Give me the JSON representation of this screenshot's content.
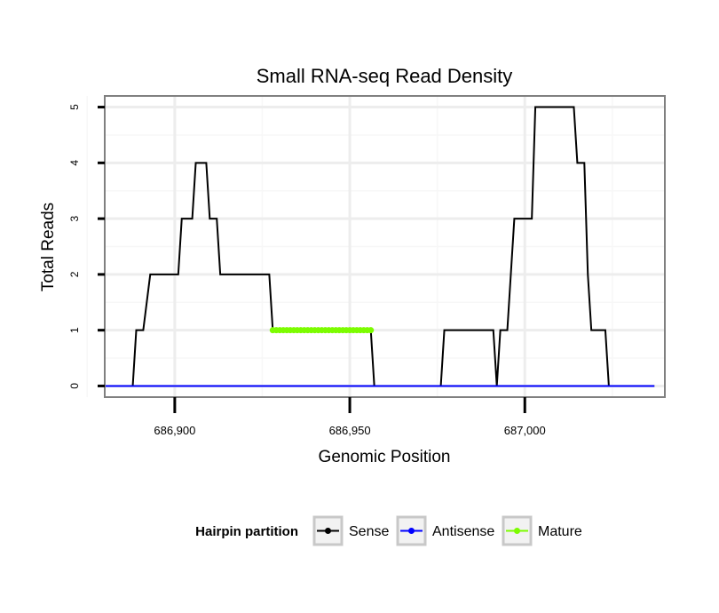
{
  "chart_data": {
    "type": "line",
    "title": "Small RNA-seq Read Density",
    "xlabel": "Genomic Position",
    "ylabel": "Total Reads",
    "xlim": [
      686880,
      687040
    ],
    "ylim": [
      -0.2,
      5.2
    ],
    "x_ticks": [
      686900,
      686950,
      687000
    ],
    "x_tick_labels": [
      "686,900",
      "686,950",
      "687,000"
    ],
    "y_ticks": [
      0,
      1,
      2,
      3,
      4,
      5
    ],
    "y_tick_labels": [
      "0",
      "1",
      "2",
      "3",
      "4",
      "5"
    ],
    "grid": true,
    "legend": {
      "title": "Hairpin partition",
      "position": "bottom",
      "entries": [
        "Sense",
        "Antisense",
        "Mature"
      ]
    },
    "series": [
      {
        "name": "Sense",
        "color": "#000000",
        "points": [
          [
            686880,
            0
          ],
          [
            686888,
            0
          ],
          [
            686889,
            1
          ],
          [
            686891,
            1
          ],
          [
            686893,
            2
          ],
          [
            686901,
            2
          ],
          [
            686902,
            3
          ],
          [
            686905,
            3
          ],
          [
            686906,
            4
          ],
          [
            686909,
            4
          ],
          [
            686910,
            3
          ],
          [
            686912,
            3
          ],
          [
            686913,
            2
          ],
          [
            686927,
            2
          ],
          [
            686928,
            1
          ],
          [
            686956,
            1
          ],
          [
            686957,
            0
          ],
          [
            686976,
            0
          ],
          [
            686977,
            1
          ],
          [
            686991,
            1
          ],
          [
            686992,
            0
          ],
          [
            686993,
            1
          ],
          [
            686995,
            1
          ],
          [
            686996,
            2
          ],
          [
            686997,
            3
          ],
          [
            687002,
            3
          ],
          [
            687003,
            5
          ],
          [
            687014,
            5
          ],
          [
            687015,
            4
          ],
          [
            687017,
            4
          ],
          [
            687018,
            2
          ],
          [
            687019,
            1
          ],
          [
            687023,
            1
          ],
          [
            687024,
            0
          ],
          [
            687037,
            0
          ]
        ]
      },
      {
        "name": "Antisense",
        "color": "#0000ff",
        "points": [
          [
            686880,
            0
          ],
          [
            687037,
            0
          ]
        ]
      },
      {
        "name": "Mature",
        "color": "#7cfc00",
        "points": [
          [
            686928,
            1
          ],
          [
            686956,
            1
          ]
        ]
      }
    ]
  }
}
